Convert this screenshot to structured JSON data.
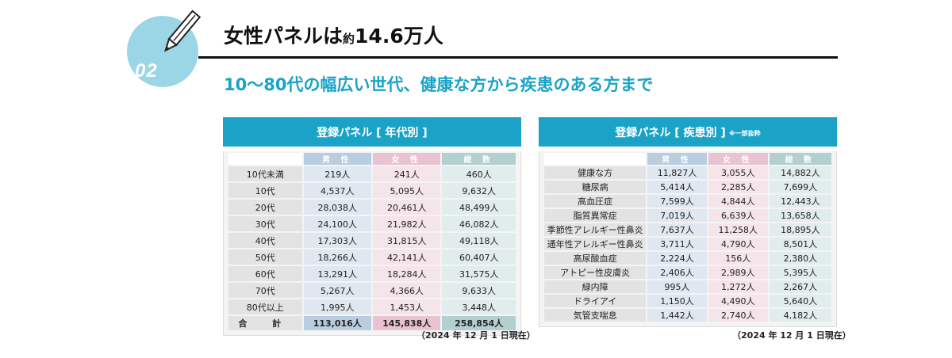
{
  "badge": {
    "number": "02"
  },
  "heading": {
    "main": "女性パネルは",
    "small": "約",
    "value": "14.6万人"
  },
  "subheading": "10～80代の幅広い世代、健康な方から疾患のある方まで",
  "columns": {
    "male": "男 性",
    "female": "女 性",
    "total": "総 数"
  },
  "age_table": {
    "title": "登録パネル [ 年代別 ]",
    "rows": [
      {
        "label": "10代未満",
        "male": "219人",
        "female": "241人",
        "total": "460人"
      },
      {
        "label": "10代",
        "male": "4,537人",
        "female": "5,095人",
        "total": "9,632人"
      },
      {
        "label": "20代",
        "male": "28,038人",
        "female": "20,461人",
        "total": "48,499人"
      },
      {
        "label": "30代",
        "male": "24,100人",
        "female": "21,982人",
        "total": "46,082人"
      },
      {
        "label": "40代",
        "male": "17,303人",
        "female": "31,815人",
        "total": "49,118人"
      },
      {
        "label": "50代",
        "male": "18,266人",
        "female": "42,141人",
        "total": "60,407人"
      },
      {
        "label": "60代",
        "male": "13,291人",
        "female": "18,284人",
        "total": "31,575人"
      },
      {
        "label": "70代",
        "male": "5,267人",
        "female": "4,366人",
        "total": "9,633人"
      },
      {
        "label": "80代以上",
        "male": "1,995人",
        "female": "1,453人",
        "total": "3,448人"
      }
    ],
    "total": {
      "label": "合 計",
      "male": "113,016人",
      "female": "145,838人",
      "total": "258,854人"
    },
    "date": "（2024 年 12 月 1 日現在）"
  },
  "disease_table": {
    "title": "登録パネル [ 疾患別 ]",
    "note": "※一部抜粋",
    "rows": [
      {
        "label": "健康な方",
        "male": "11,827人",
        "female": "3,055人",
        "total": "14,882人"
      },
      {
        "label": "糖尿病",
        "male": "5,414人",
        "female": "2,285人",
        "total": "7,699人"
      },
      {
        "label": "高血圧症",
        "male": "7,599人",
        "female": "4,844人",
        "total": "12,443人"
      },
      {
        "label": "脂質異常症",
        "male": "7,019人",
        "female": "6,639人",
        "total": "13,658人"
      },
      {
        "label": "季節性アレルギー性鼻炎",
        "male": "7,637人",
        "female": "11,258人",
        "total": "18,895人"
      },
      {
        "label": "通年性アレルギー性鼻炎",
        "male": "3,711人",
        "female": "4,790人",
        "total": "8,501人"
      },
      {
        "label": "高尿酸血症",
        "male": "2,224人",
        "female": "156人",
        "total": "2,380人"
      },
      {
        "label": "アトピー性皮膚炎",
        "male": "2,406人",
        "female": "2,989人",
        "total": "5,395人"
      },
      {
        "label": "緑内障",
        "male": "995人",
        "female": "1,272人",
        "total": "2,267人"
      },
      {
        "label": "ドライアイ",
        "male": "1,150人",
        "female": "4,490人",
        "total": "5,640人"
      },
      {
        "label": "気管支喘息",
        "male": "1,442人",
        "female": "2,740人",
        "total": "4,182人"
      }
    ],
    "date": "（2024 年 12 月 1 日現在）"
  }
}
